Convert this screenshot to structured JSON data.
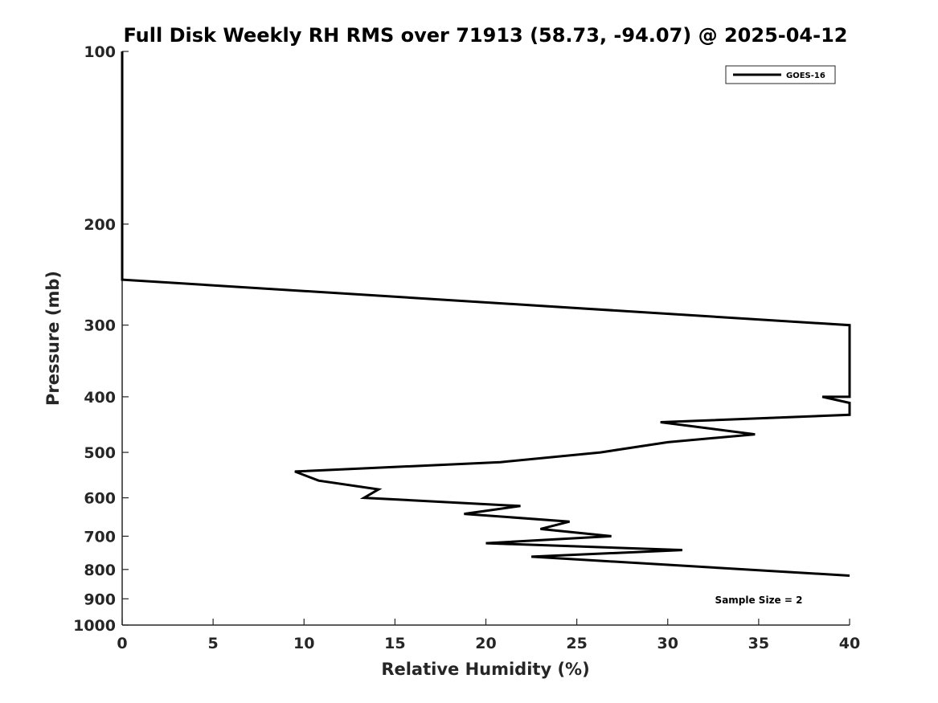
{
  "chart_data": {
    "type": "line",
    "title": "Full Disk Weekly RH RMS over 71913 (58.73, -94.07) @ 2025-04-12",
    "xlabel": "Relative Humidity (%)",
    "ylabel": "Pressure (mb)",
    "xlim": [
      0,
      40
    ],
    "ylim": [
      100,
      1000
    ],
    "y_scale": "log",
    "y_reversed": true,
    "x_ticks": [
      "0",
      "5",
      "10",
      "15",
      "20",
      "25",
      "30",
      "35",
      "40"
    ],
    "y_ticks": [
      "100",
      "200",
      "300",
      "400",
      "500",
      "600",
      "700",
      "800",
      "900",
      "1000"
    ],
    "grid": false,
    "legend_position": "top-right",
    "annotation": "Sample Size = 2",
    "series": [
      {
        "name": "GOES-16",
        "color": "#000000",
        "points": [
          [
            0.0,
            100
          ],
          [
            0.0,
            150
          ],
          [
            0.0,
            175
          ],
          [
            0.0,
            200
          ],
          [
            0.0,
            225
          ],
          [
            0.0,
            250
          ],
          [
            40.0,
            300
          ],
          [
            40.0,
            400
          ],
          [
            38.5,
            400
          ],
          [
            40.0,
            410
          ],
          [
            40.0,
            430
          ],
          [
            29.6,
            443
          ],
          [
            34.8,
            465
          ],
          [
            30.0,
            480
          ],
          [
            26.3,
            500
          ],
          [
            20.8,
            520
          ],
          [
            9.5,
            540
          ],
          [
            10.8,
            560
          ],
          [
            14.1,
            580
          ],
          [
            13.3,
            600
          ],
          [
            21.9,
            620
          ],
          [
            18.8,
            640
          ],
          [
            24.6,
            660
          ],
          [
            23.0,
            680
          ],
          [
            26.9,
            700
          ],
          [
            20.0,
            720
          ],
          [
            30.8,
            740
          ],
          [
            22.5,
            760
          ],
          [
            40.0,
            820
          ]
        ]
      }
    ]
  }
}
